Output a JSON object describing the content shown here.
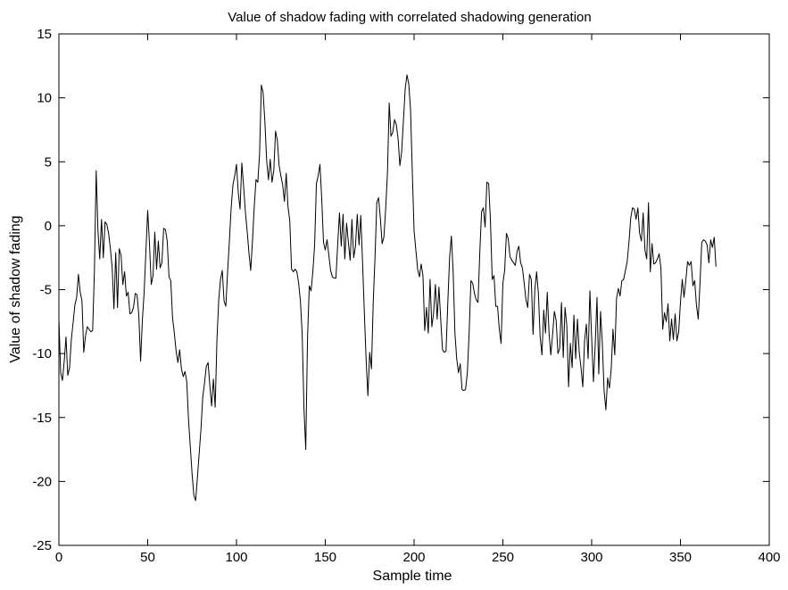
{
  "chart_data": {
    "type": "line",
    "title": "Value of shadow fading with correlated shadowing generation",
    "xlabel": "Sample time",
    "ylabel": "Value of shadow fading",
    "xlim": [
      0,
      400
    ],
    "ylim": [
      -25,
      15
    ],
    "xticks": [
      0,
      50,
      100,
      150,
      200,
      250,
      300,
      350,
      400
    ],
    "yticks": [
      -25,
      -20,
      -15,
      -10,
      -5,
      0,
      5,
      10,
      15
    ],
    "grid": false,
    "box": true,
    "line_color": "#000000",
    "series": [
      {
        "x": [
          0,
          1,
          2,
          3,
          4,
          5,
          6,
          7,
          8,
          9,
          10,
          11,
          12,
          13,
          14,
          15,
          16,
          17,
          18,
          19,
          20,
          21,
          22,
          23,
          24,
          25,
          26,
          27,
          28,
          29,
          30,
          31,
          32,
          33,
          34,
          35,
          36,
          37,
          38,
          39,
          40,
          41,
          42,
          43,
          44,
          45,
          46,
          47,
          48,
          49,
          50,
          51,
          52,
          53,
          54,
          55,
          56,
          57,
          58,
          59,
          60,
          61,
          62,
          63,
          64,
          65,
          66,
          67,
          68,
          69,
          70,
          71,
          72,
          73,
          74,
          75,
          76,
          77,
          78,
          79,
          80,
          81,
          82,
          83,
          84,
          85,
          86,
          87,
          88,
          89,
          90,
          91,
          92,
          93,
          94,
          95,
          96,
          97,
          98,
          99,
          100,
          101,
          102,
          103,
          104,
          105,
          106,
          107,
          108,
          109,
          110,
          111,
          112,
          113,
          114,
          115,
          116,
          117,
          118,
          119,
          120,
          121,
          122,
          123,
          124,
          125,
          126,
          127,
          128,
          129,
          130,
          131,
          132,
          133,
          134,
          135,
          136,
          137,
          138,
          139,
          140,
          141,
          142,
          143,
          144,
          145,
          146,
          147,
          148,
          149,
          150,
          151,
          152,
          153,
          154,
          155,
          156,
          157,
          158,
          159,
          160,
          161,
          162,
          163,
          164,
          165,
          166,
          167,
          168,
          169,
          170,
          171,
          172,
          173,
          174,
          175,
          176,
          177,
          178,
          179,
          180,
          181,
          182,
          183,
          184,
          185,
          186,
          187,
          188,
          189,
          190,
          191,
          192,
          193,
          194,
          195,
          196,
          197,
          198,
          199,
          200,
          201,
          202,
          203,
          204,
          205,
          206,
          207,
          208,
          209,
          210,
          211,
          212,
          213,
          214,
          215,
          216,
          217,
          218,
          219,
          220,
          221,
          222,
          223,
          224,
          225,
          226,
          227,
          228,
          229,
          230,
          231,
          232,
          233,
          234,
          235,
          236,
          237,
          238,
          239,
          240,
          241,
          242,
          243,
          244,
          245,
          246,
          247,
          248,
          249,
          250,
          251,
          252,
          253,
          254,
          255,
          256,
          257,
          258,
          259,
          260,
          261,
          262,
          263,
          264,
          265,
          266,
          267,
          268,
          269,
          270,
          271,
          272,
          273,
          274,
          275,
          276,
          277,
          278,
          279,
          280,
          281,
          282,
          283,
          284,
          285,
          286,
          287,
          288,
          289,
          290,
          291,
          292,
          293,
          294,
          295,
          296,
          297,
          298,
          299,
          300,
          301,
          302,
          303,
          304,
          305,
          306,
          307,
          308,
          309,
          310,
          311,
          312,
          313,
          314,
          315,
          316,
          317,
          318,
          319,
          320,
          321,
          322,
          323,
          324,
          325,
          326,
          327,
          328,
          329,
          330,
          331,
          332,
          333,
          334,
          335,
          336,
          337,
          338,
          339,
          340,
          341,
          342,
          343,
          344,
          345,
          346,
          347,
          348,
          349,
          350,
          351,
          352,
          353,
          354,
          355,
          356,
          357,
          358,
          359,
          360,
          361,
          362,
          363,
          364,
          365,
          366,
          367,
          368,
          369,
          370
        ],
        "y": [
          -7.3,
          -11.5,
          -12.1,
          -10.6,
          -8.7,
          -11.7,
          -11.1,
          -8.9,
          -7.6,
          -6.2,
          -5.6,
          -3.8,
          -5.2,
          -5.9,
          -9.9,
          -8.6,
          -7.9,
          -8.1,
          -8.3,
          -8.2,
          -3.5,
          4.3,
          -0.4,
          -2.6,
          0.5,
          -2.5,
          0.3,
          0.1,
          -0.6,
          -1.8,
          -3.3,
          -6.5,
          -2.1,
          -6.4,
          -1.8,
          -2.3,
          -4.6,
          -3.6,
          -5.5,
          -5.2,
          -6.9,
          -6.8,
          -6.4,
          -5.3,
          -5.4,
          -7.0,
          -10.6,
          -7.4,
          -5.2,
          -2.0,
          1.2,
          -1.4,
          -4.6,
          -3.9,
          -0.5,
          -3.4,
          -1.2,
          -3.3,
          -2.9,
          -0.2,
          -0.3,
          -1.2,
          -4.0,
          -4.3,
          -7.2,
          -8.4,
          -9.8,
          -10.7,
          -9.7,
          -11.2,
          -11.8,
          -11.4,
          -12.2,
          -15.2,
          -17.3,
          -19.4,
          -21.1,
          -21.5,
          -19.7,
          -17.8,
          -15.9,
          -13.4,
          -12.3,
          -11.0,
          -10.7,
          -12.5,
          -14.1,
          -12.0,
          -14.2,
          -8.9,
          -5.8,
          -4.2,
          -3.5,
          -5.9,
          -6.3,
          -3.6,
          -1.2,
          1.4,
          3.2,
          3.9,
          4.8,
          2.6,
          1.3,
          4.9,
          3.1,
          1.1,
          -0.4,
          -2.1,
          -3.5,
          -1.2,
          1.5,
          3.6,
          3.4,
          5.6,
          11.0,
          10.4,
          8.1,
          5.1,
          3.6,
          5.2,
          3.4,
          4.3,
          7.4,
          6.7,
          4.7,
          3.9,
          3.2,
          1.9,
          4.1,
          1.5,
          0.4,
          -3.4,
          -3.6,
          -3.4,
          -3.6,
          -4.5,
          -5.9,
          -8.5,
          -14.3,
          -17.5,
          -8.8,
          -4.7,
          -5.1,
          -3.6,
          -1.5,
          3.3,
          3.9,
          4.8,
          2.1,
          -1.3,
          -1.9,
          -1.1,
          -2.3,
          -3.5,
          -4.0,
          -4.1,
          -4.1,
          -1.4,
          1.0,
          -1.6,
          0.9,
          -2.6,
          0.2,
          -1.3,
          -2.7,
          0.5,
          -2.5,
          -1.6,
          0.9,
          -1.5,
          0.8,
          -2.9,
          -6.8,
          -10.5,
          -13.3,
          -9.9,
          -11.2,
          -6.0,
          -2.5,
          1.8,
          2.2,
          0.6,
          -1.4,
          -0.9,
          1.3,
          4.1,
          9.6,
          7.0,
          7.3,
          8.3,
          7.9,
          6.8,
          4.7,
          5.8,
          8.2,
          10.7,
          11.8,
          11.1,
          9.1,
          4.2,
          -0.4,
          -1.9,
          -3.4,
          -4.0,
          -3.0,
          -3.9,
          -8.2,
          -6.4,
          -8.4,
          -4.2,
          -7.9,
          -6.8,
          -4.6,
          -7.3,
          -4.8,
          -7.3,
          -9.7,
          -9.9,
          -9.8,
          -6.0,
          -2.5,
          -0.8,
          -3.6,
          -8.4,
          -10.4,
          -11.5,
          -10.8,
          -12.8,
          -12.9,
          -12.8,
          -11.5,
          -8.4,
          -4.3,
          -4.5,
          -5.3,
          -5.8,
          -6.0,
          -2.1,
          1.1,
          1.4,
          -0.1,
          3.4,
          3.3,
          0.4,
          -4.2,
          -3.9,
          -6.3,
          -6.3,
          -8.1,
          -9.2,
          -4.5,
          -3.5,
          -0.6,
          -1.0,
          -2.4,
          -2.7,
          -2.9,
          -3.1,
          -2.0,
          -1.6,
          -2.9,
          -3.3,
          -4.5,
          -5.8,
          -6.4,
          -3.8,
          -4.2,
          -8.5,
          -5.0,
          -3.6,
          -5.3,
          -8.7,
          -10.1,
          -6.6,
          -8.4,
          -5.2,
          -8.4,
          -10.1,
          -8.5,
          -6.7,
          -7.4,
          -10.0,
          -9.6,
          -6.0,
          -10.3,
          -6.4,
          -7.8,
          -12.6,
          -9.2,
          -11.1,
          -7.0,
          -10.4,
          -7.3,
          -9.9,
          -11.1,
          -12.6,
          -9.0,
          -7.7,
          -10.4,
          -5.1,
          -8.8,
          -12.2,
          -9.3,
          -5.6,
          -11.6,
          -6.7,
          -9.2,
          -12.9,
          -14.4,
          -11.9,
          -12.7,
          -11.2,
          -8.1,
          -10.1,
          -5.7,
          -4.9,
          -5.5,
          -4.3,
          -4.2,
          -3.5,
          -2.8,
          -1.3,
          0.6,
          1.4,
          1.3,
          0.5,
          1.4,
          -0.6,
          -1.2,
          1.0,
          -1.9,
          -2.6,
          1.8,
          -3.6,
          -1.4,
          -3.0,
          -2.9,
          -2.6,
          -2.2,
          -3.3,
          -8.1,
          -6.8,
          -7.5,
          -6.1,
          -9.0,
          -7.3,
          -8.9,
          -6.9,
          -9.0,
          -8.3,
          -6.0,
          -4.2,
          -5.6,
          -4.3,
          -2.8,
          -3.1,
          -2.8,
          -4.7,
          -4.3,
          -6.2,
          -7.3,
          -4.5,
          -1.3,
          -1.1,
          -1.2,
          -1.5,
          -2.9,
          -1.1,
          -1.7,
          -0.9,
          -3.2
        ]
      }
    ]
  }
}
